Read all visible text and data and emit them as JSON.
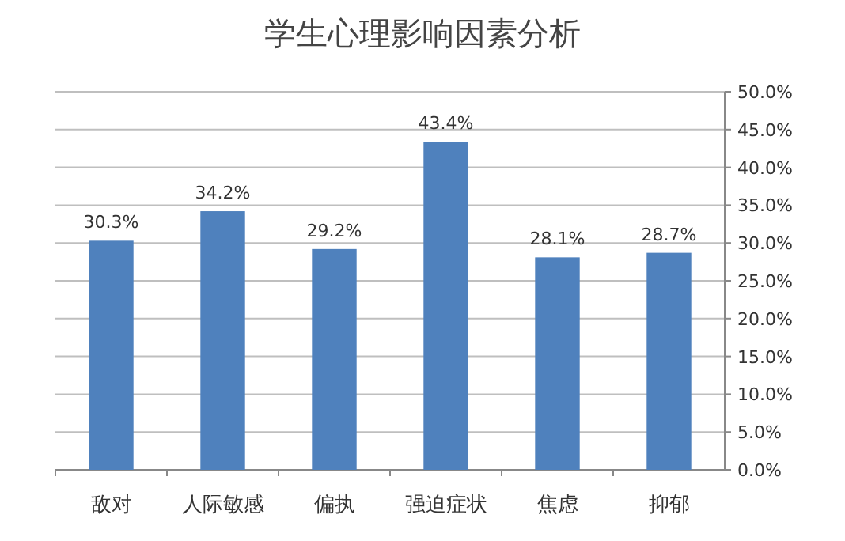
{
  "chart_data": {
    "type": "bar",
    "title": "学生心理影响因素分析",
    "categories": [
      "敌对",
      "人际敏感",
      "偏执",
      "强迫症状",
      "焦虑",
      "抑郁"
    ],
    "values": [
      30.3,
      34.2,
      29.2,
      43.4,
      28.1,
      28.7
    ],
    "value_labels": [
      "30.3%",
      "34.2%",
      "29.2%",
      "43.4%",
      "28.1%",
      "28.7%"
    ],
    "color": "#4f81bd",
    "grid": "y",
    "ylim": [
      0,
      50
    ],
    "yticks": [
      {
        "value": 0,
        "label": "0.0%"
      },
      {
        "value": 5,
        "label": "5.0%"
      },
      {
        "value": 10,
        "label": "10.0%"
      },
      {
        "value": 15,
        "label": "15.0%"
      },
      {
        "value": 20,
        "label": "20.0%"
      },
      {
        "value": 25,
        "label": "25.0%"
      },
      {
        "value": 30,
        "label": "30.0%"
      },
      {
        "value": 35,
        "label": "35.0%"
      },
      {
        "value": 40,
        "label": "40.0%"
      },
      {
        "value": 45,
        "label": "45.0%"
      },
      {
        "value": 50,
        "label": "50.0%"
      }
    ]
  }
}
